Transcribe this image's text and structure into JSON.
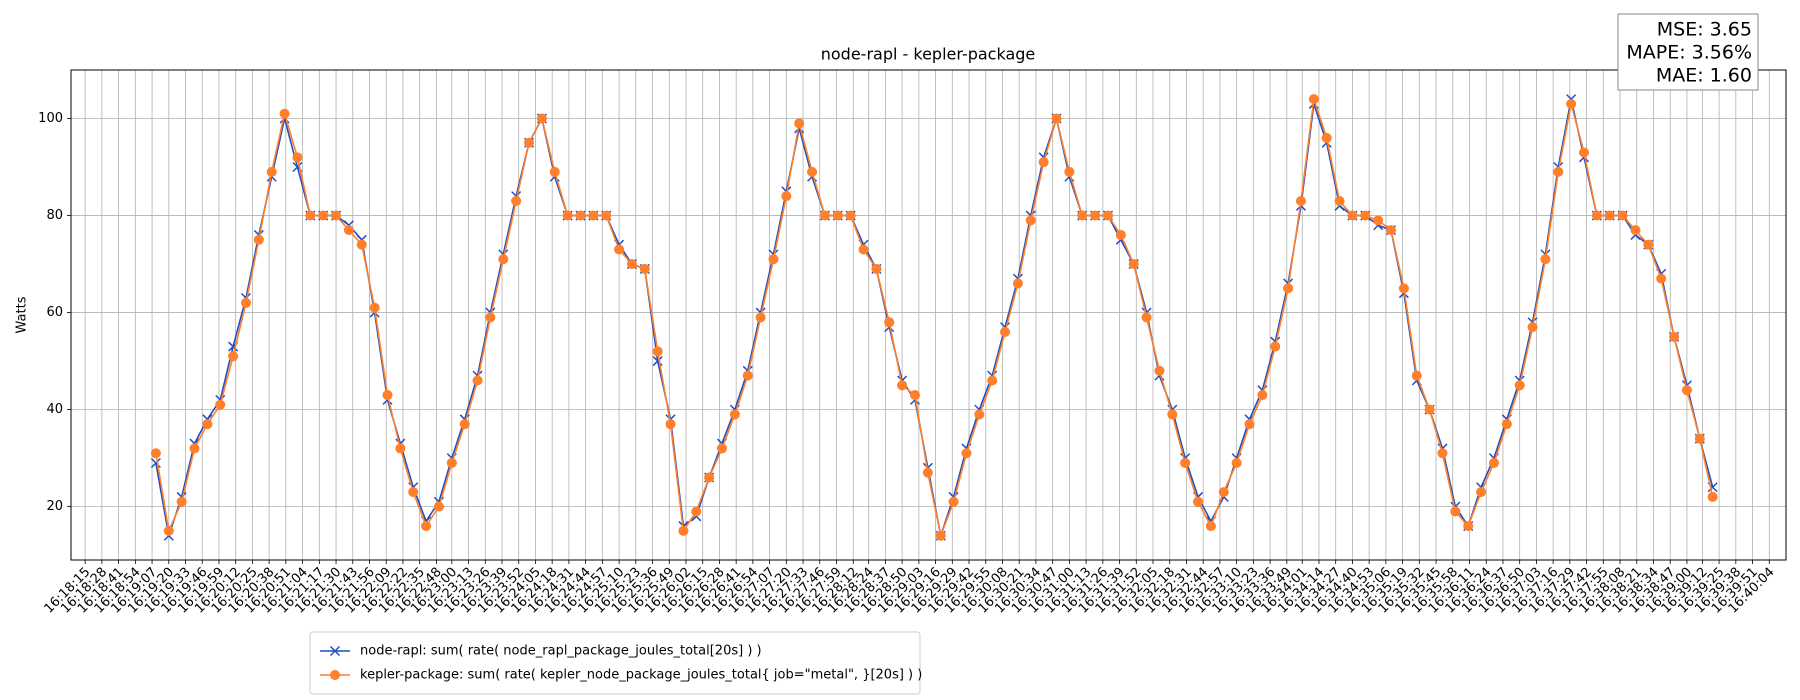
{
  "chart_data": {
    "type": "line",
    "title": "node-rapl - kepler-package",
    "ylabel": "Watts",
    "annotation": [
      "MSE: 3.65",
      "MAPE: 3.56%",
      "MAE: 1.60"
    ],
    "grid": true,
    "legend": "bottom",
    "xlim": [
      "16:18:04",
      "16:40:17"
    ],
    "ylim": [
      9,
      110
    ],
    "yticks": [
      20,
      40,
      60,
      80,
      100
    ],
    "xticks": [
      "16:18:15",
      "16:18:28",
      "16:18:41",
      "16:18:54",
      "16:19:07",
      "16:19:20",
      "16:19:33",
      "16:19:46",
      "16:19:59",
      "16:20:12",
      "16:20:25",
      "16:20:38",
      "16:20:51",
      "16:21:04",
      "16:21:17",
      "16:21:30",
      "16:21:43",
      "16:21:56",
      "16:22:09",
      "16:22:22",
      "16:22:35",
      "16:22:48",
      "16:23:00",
      "16:23:13",
      "16:23:26",
      "16:23:39",
      "16:23:52",
      "16:24:05",
      "16:24:18",
      "16:24:31",
      "16:24:44",
      "16:24:57",
      "16:25:10",
      "16:25:23",
      "16:25:36",
      "16:25:49",
      "16:26:02",
      "16:26:15",
      "16:26:28",
      "16:26:41",
      "16:26:54",
      "16:27:07",
      "16:27:20",
      "16:27:33",
      "16:27:46",
      "16:27:59",
      "16:28:12",
      "16:28:24",
      "16:28:37",
      "16:28:50",
      "16:29:03",
      "16:29:16",
      "16:29:29",
      "16:29:42",
      "16:29:55",
      "16:30:08",
      "16:30:21",
      "16:30:34",
      "16:30:47",
      "16:31:00",
      "16:31:13",
      "16:31:26",
      "16:31:39",
      "16:31:52",
      "16:32:05",
      "16:32:18",
      "16:32:31",
      "16:32:44",
      "16:32:57",
      "16:33:10",
      "16:33:23",
      "16:33:36",
      "16:33:49",
      "16:34:01",
      "16:34:14",
      "16:34:27",
      "16:34:40",
      "16:34:53",
      "16:35:06",
      "16:35:19",
      "16:35:32",
      "16:35:45",
      "16:35:58",
      "16:36:11",
      "16:36:24",
      "16:36:37",
      "16:36:50",
      "16:37:03",
      "16:37:16",
      "16:37:29",
      "16:37:42",
      "16:37:55",
      "16:38:08",
      "16:38:21",
      "16:38:34",
      "16:38:47",
      "16:39:00",
      "16:39:12",
      "16:39:25",
      "16:39:38",
      "16:39:51",
      "16:40:04"
    ],
    "x": [
      "16:19:10",
      "16:19:20",
      "16:19:30",
      "16:19:40",
      "16:19:50",
      "16:20:00",
      "16:20:10",
      "16:20:20",
      "16:20:30",
      "16:20:40",
      "16:20:50",
      "16:21:00",
      "16:21:10",
      "16:21:20",
      "16:21:30",
      "16:21:40",
      "16:21:50",
      "16:22:00",
      "16:22:10",
      "16:22:20",
      "16:22:30",
      "16:22:40",
      "16:22:50",
      "16:23:00",
      "16:23:10",
      "16:23:20",
      "16:23:30",
      "16:23:40",
      "16:23:50",
      "16:24:00",
      "16:24:10",
      "16:24:20",
      "16:24:30",
      "16:24:40",
      "16:24:50",
      "16:25:00",
      "16:25:10",
      "16:25:20",
      "16:25:30",
      "16:25:40",
      "16:25:50",
      "16:26:00",
      "16:26:10",
      "16:26:20",
      "16:26:30",
      "16:26:40",
      "16:26:50",
      "16:27:00",
      "16:27:10",
      "16:27:20",
      "16:27:30",
      "16:27:40",
      "16:27:50",
      "16:28:00",
      "16:28:10",
      "16:28:20",
      "16:28:30",
      "16:28:40",
      "16:28:50",
      "16:29:00",
      "16:29:10",
      "16:29:20",
      "16:29:30",
      "16:29:40",
      "16:29:50",
      "16:30:00",
      "16:30:10",
      "16:30:20",
      "16:30:30",
      "16:30:40",
      "16:30:50",
      "16:31:00",
      "16:31:10",
      "16:31:20",
      "16:31:30",
      "16:31:40",
      "16:31:50",
      "16:32:00",
      "16:32:10",
      "16:32:20",
      "16:32:30",
      "16:32:40",
      "16:32:50",
      "16:33:00",
      "16:33:10",
      "16:33:20",
      "16:33:30",
      "16:33:40",
      "16:33:50",
      "16:34:00",
      "16:34:10",
      "16:34:20",
      "16:34:30",
      "16:34:40",
      "16:34:50",
      "16:35:00",
      "16:35:10",
      "16:35:20",
      "16:35:30",
      "16:35:40",
      "16:35:50",
      "16:36:00",
      "16:36:10",
      "16:36:20",
      "16:36:30",
      "16:36:40",
      "16:36:50",
      "16:37:00",
      "16:37:10",
      "16:37:20",
      "16:37:30",
      "16:37:40",
      "16:37:50",
      "16:38:00",
      "16:38:10",
      "16:38:20",
      "16:38:30",
      "16:38:40",
      "16:38:50",
      "16:39:00",
      "16:39:10",
      "16:39:20"
    ],
    "series": [
      {
        "name": "node-rapl: sum( rate( node_rapl_package_joules_total[20s] ) )",
        "color": "#1f4fc4",
        "marker": "x",
        "values": [
          29,
          14,
          22,
          33,
          38,
          42,
          53,
          63,
          76,
          88,
          100,
          90,
          80,
          80,
          80,
          78,
          75,
          60,
          42,
          33,
          24,
          17,
          21,
          30,
          38,
          47,
          60,
          72,
          84,
          95,
          100,
          88,
          80,
          80,
          80,
          80,
          74,
          70,
          69,
          50,
          38,
          16,
          18,
          26,
          33,
          40,
          48,
          60,
          72,
          85,
          98,
          88,
          80,
          80,
          80,
          74,
          69,
          57,
          46,
          42,
          28,
          14,
          22,
          32,
          40,
          47,
          57,
          67,
          80,
          92,
          100,
          88,
          80,
          80,
          80,
          75,
          70,
          60,
          47,
          40,
          30,
          22,
          17,
          22,
          30,
          38,
          44,
          54,
          66,
          82,
          103,
          95,
          82,
          80,
          80,
          78,
          77,
          64,
          46,
          40,
          32,
          20,
          16,
          24,
          30,
          38,
          46,
          58,
          72,
          90,
          104,
          92,
          80,
          80,
          80,
          76,
          74,
          68,
          55,
          45,
          34,
          24
        ]
      },
      {
        "name": "kepler-package: sum( rate( kepler_node_package_joules_total{ job=\"metal\", }[20s] ) )",
        "color": "#ff7f2a",
        "marker": "o",
        "values": [
          31,
          15,
          21,
          32,
          37,
          41,
          51,
          62,
          75,
          89,
          101,
          92,
          80,
          80,
          80,
          77,
          74,
          61,
          43,
          32,
          23,
          16,
          20,
          29,
          37,
          46,
          59,
          71,
          83,
          95,
          100,
          89,
          80,
          80,
          80,
          80,
          73,
          70,
          69,
          52,
          37,
          15,
          19,
          26,
          32,
          39,
          47,
          59,
          71,
          84,
          99,
          89,
          80,
          80,
          80,
          73,
          69,
          58,
          45,
          43,
          27,
          14,
          21,
          31,
          39,
          46,
          56,
          66,
          79,
          91,
          100,
          89,
          80,
          80,
          80,
          76,
          70,
          59,
          48,
          39,
          29,
          21,
          16,
          23,
          29,
          37,
          43,
          53,
          65,
          83,
          104,
          96,
          83,
          80,
          80,
          79,
          77,
          65,
          47,
          40,
          31,
          19,
          16,
          23,
          29,
          37,
          45,
          57,
          71,
          89,
          103,
          93,
          80,
          80,
          80,
          77,
          74,
          67,
          55,
          44,
          34,
          22
        ]
      }
    ]
  }
}
